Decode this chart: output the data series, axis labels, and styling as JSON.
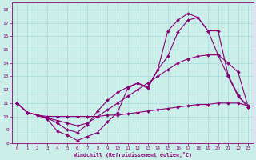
{
  "xlabel": "Windchill (Refroidissement éolien,°C)",
  "background_color": "#cceee8",
  "grid_color": "#aadddd",
  "line_color": "#880077",
  "xlim": [
    -0.5,
    23.5
  ],
  "ylim": [
    8,
    18.5
  ],
  "xticks": [
    0,
    1,
    2,
    3,
    4,
    5,
    6,
    7,
    8,
    9,
    10,
    11,
    12,
    13,
    14,
    15,
    16,
    17,
    18,
    19,
    20,
    21,
    22,
    23
  ],
  "yticks": [
    8,
    9,
    10,
    11,
    12,
    13,
    14,
    15,
    16,
    17,
    18
  ],
  "series1_x": [
    0,
    1,
    2,
    3,
    4,
    5,
    6,
    7,
    8,
    9,
    10,
    11,
    12,
    13,
    14,
    15,
    16,
    17,
    18,
    19,
    20,
    21,
    22,
    23
  ],
  "series1_y": [
    11.0,
    10.3,
    10.1,
    10.0,
    10.0,
    10.0,
    10.0,
    10.0,
    10.0,
    10.1,
    10.1,
    10.2,
    10.3,
    10.4,
    10.5,
    10.6,
    10.7,
    10.8,
    10.9,
    10.9,
    11.0,
    11.0,
    11.0,
    10.8
  ],
  "series2_x": [
    0,
    1,
    2,
    3,
    4,
    5,
    6,
    7,
    8,
    9,
    10,
    11,
    12,
    13,
    14,
    15,
    16,
    17,
    18,
    19,
    20,
    21,
    22,
    23
  ],
  "series2_y": [
    11.0,
    10.3,
    10.1,
    9.9,
    9.5,
    9.0,
    8.8,
    9.4,
    10.4,
    11.2,
    11.8,
    12.2,
    12.5,
    12.2,
    13.5,
    14.5,
    16.3,
    17.2,
    17.4,
    16.4,
    14.6,
    13.0,
    11.5,
    10.7
  ],
  "series3_x": [
    0,
    1,
    2,
    3,
    4,
    5,
    6,
    7,
    8,
    9,
    10,
    11,
    12,
    13,
    14,
    15,
    16,
    17,
    18,
    19,
    20,
    21,
    22,
    23
  ],
  "series3_y": [
    11.0,
    10.3,
    10.1,
    9.8,
    8.9,
    8.6,
    8.2,
    8.5,
    8.8,
    9.6,
    10.3,
    12.1,
    12.5,
    12.1,
    13.5,
    16.4,
    17.2,
    17.7,
    17.4,
    16.4,
    16.4,
    13.1,
    11.6,
    10.7
  ],
  "series4_x": [
    0,
    1,
    2,
    3,
    4,
    5,
    6,
    7,
    8,
    9,
    10,
    11,
    12,
    13,
    14,
    15,
    16,
    17,
    18,
    19,
    20,
    21,
    22,
    23
  ],
  "series4_y": [
    11.0,
    10.3,
    10.1,
    9.9,
    9.7,
    9.5,
    9.3,
    9.5,
    10.0,
    10.5,
    11.0,
    11.5,
    12.0,
    12.5,
    13.0,
    13.5,
    14.0,
    14.3,
    14.5,
    14.6,
    14.6,
    14.0,
    13.3,
    10.7
  ]
}
